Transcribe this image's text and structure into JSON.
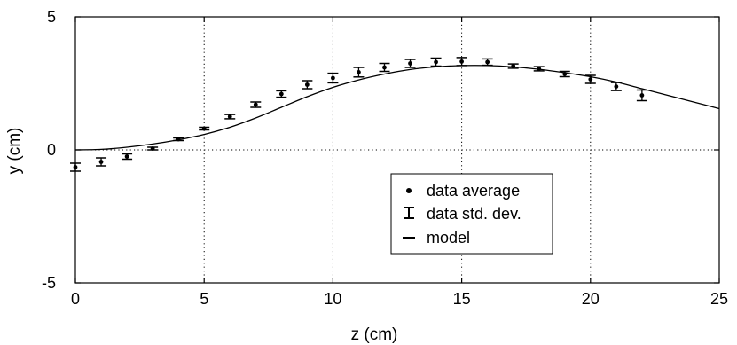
{
  "chart_data": {
    "type": "scatter",
    "xlabel": "z (cm)",
    "ylabel": "y (cm)",
    "xlim": [
      0,
      25
    ],
    "ylim": [
      -5,
      5
    ],
    "x_ticks": [
      0,
      5,
      10,
      15,
      20,
      25
    ],
    "y_ticks": [
      -5,
      0,
      5
    ],
    "x_tick_labels": [
      "0",
      "5",
      "10",
      "15",
      "20",
      "25"
    ],
    "y_tick_labels": [
      "-5",
      "0",
      "5"
    ],
    "grid": "vertical dotted at x ticks, dotted zero line",
    "legend_position": "lower-center",
    "series": [
      {
        "name": "data average",
        "kind": "points-with-errorbars",
        "x": [
          0,
          1,
          2,
          3,
          4,
          5,
          6,
          7,
          8,
          9,
          10,
          11,
          12,
          13,
          14,
          15,
          16,
          17,
          18,
          19,
          20,
          21,
          22
        ],
        "y": [
          -0.65,
          -0.45,
          -0.25,
          0.05,
          0.4,
          0.8,
          1.25,
          1.7,
          2.1,
          2.45,
          2.7,
          2.92,
          3.1,
          3.25,
          3.3,
          3.32,
          3.3,
          3.15,
          3.05,
          2.85,
          2.65,
          2.38,
          2.05
        ],
        "err": [
          0.15,
          0.15,
          0.1,
          0.05,
          0.05,
          0.05,
          0.08,
          0.1,
          0.12,
          0.15,
          0.18,
          0.18,
          0.15,
          0.15,
          0.15,
          0.15,
          0.12,
          0.08,
          0.08,
          0.1,
          0.15,
          0.15,
          0.2
        ]
      },
      {
        "name": "model",
        "kind": "line",
        "x": [
          0,
          1,
          2,
          3,
          4,
          5,
          6,
          7,
          8,
          9,
          10,
          11,
          12,
          13,
          14,
          15,
          16,
          17,
          18,
          19,
          20,
          21,
          22,
          23,
          24,
          25
        ],
        "y": [
          0,
          0.02,
          0.1,
          0.22,
          0.38,
          0.58,
          0.85,
          1.2,
          1.6,
          2.0,
          2.35,
          2.63,
          2.85,
          3.02,
          3.12,
          3.17,
          3.17,
          3.12,
          3.03,
          2.9,
          2.75,
          2.55,
          2.3,
          2.05,
          1.8,
          1.55
        ]
      }
    ],
    "legend": [
      {
        "symbol": "dot",
        "label": "data average"
      },
      {
        "symbol": "errorbar",
        "label": "data std. dev."
      },
      {
        "symbol": "line",
        "label": "model"
      }
    ]
  }
}
